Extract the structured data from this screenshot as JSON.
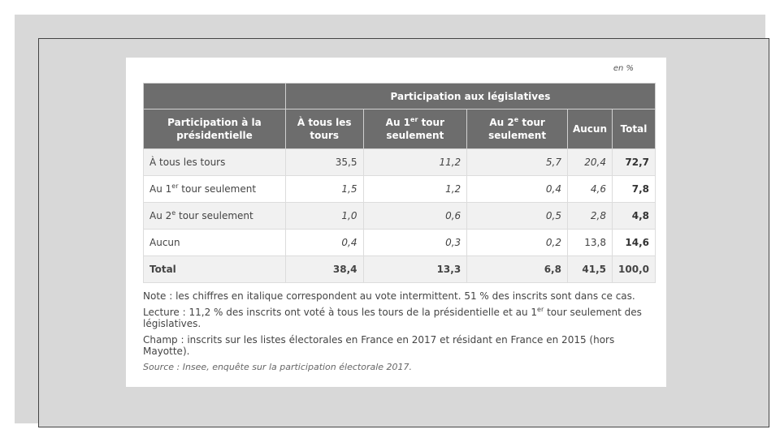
{
  "unit_label": "en %",
  "table": {
    "corner_header": "Participation à la présidentielle",
    "group_header": "Participation aux législatives",
    "columns": {
      "c1": "À tous les tours",
      "c2_pre": "Au 1",
      "c2_sup": "er",
      "c2_post": " tour seulement",
      "c3_pre": "Au 2",
      "c3_sup": "e",
      "c3_post": " tour seulement",
      "c4": "Aucun",
      "c5": "Total"
    },
    "rows": [
      {
        "label_pre": "À tous les tours",
        "label_sup": "",
        "label_post": "",
        "v1": "35,5",
        "v2": "11,2",
        "v3": "5,7",
        "v4": "20,4",
        "total": "72,7"
      },
      {
        "label_pre": "Au 1",
        "label_sup": "er",
        "label_post": " tour seulement",
        "v1": "1,5",
        "v2": "1,2",
        "v3": "0,4",
        "v4": "4,6",
        "total": "7,8"
      },
      {
        "label_pre": "Au 2",
        "label_sup": "e",
        "label_post": " tour seulement",
        "v1": "1,0",
        "v2": "0,6",
        "v3": "0,5",
        "v4": "2,8",
        "total": "4,8"
      },
      {
        "label_pre": "Aucun",
        "label_sup": "",
        "label_post": "",
        "v1": "0,4",
        "v2": "0,3",
        "v3": "0,2",
        "v4": "13,8",
        "total": "14,6"
      }
    ],
    "total_row": {
      "label": "Total",
      "v1": "38,4",
      "v2": "13,3",
      "v3": "6,8",
      "v4": "41,5",
      "total": "100,0"
    }
  },
  "notes": {
    "note": "Note : les chiffres en italique correspondent au vote intermittent. 51 % des inscrits sont dans ce cas.",
    "lecture_pre": "Lecture : 11,2 % des inscrits ont voté à tous les tours de la présidentielle et au 1",
    "lecture_sup": "er",
    "lecture_post": " tour seulement des législatives.",
    "champ": "Champ : inscrits sur les listes électorales en France en 2017 et résidant en France en 2015 (hors Mayotte).",
    "source": "Source : Insee, enquête sur la participation électorale 2017."
  }
}
